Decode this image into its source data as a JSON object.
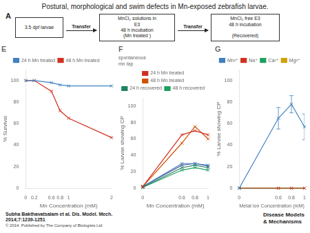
{
  "title": "Postural, morphological and swim defects in Mn-exposed zebrafish larvae.",
  "scheme": {
    "label": "A",
    "boxes": [
      "3.5 dpf larvae",
      "MnCl₂ solutions in\nE3\n48 h incubation\n(Mn treated )",
      "MnCl₂ free E3\n48 h incubation\n\n(Recovered)"
    ],
    "arrows": [
      "Transfer",
      "Transfer"
    ]
  },
  "footer": {
    "citation": "Subha Bakthavatsalam et al. Dis. Model. Mech.\n2014;7:1239-1251",
    "copyright": "© 2014. Published by The Company of Biologists Ltd",
    "logo": [
      "Disease Models",
      "& Mechanisms"
    ]
  },
  "chart_data": [
    {
      "type": "line",
      "title": "E",
      "xlabel": "Mn Concentration (mM)",
      "ylabel": "% Survival",
      "x": [
        0,
        0.2,
        0.6,
        0.8,
        1,
        2
      ],
      "series": [
        {
          "name": "24 h Mn treated",
          "color": "#4080c0",
          "values": [
            100,
            100,
            98,
            96,
            95,
            95
          ]
        },
        {
          "name": "48 h Mn treated",
          "color": "#d03020",
          "values": [
            100,
            100,
            90,
            72,
            65,
            47
          ]
        }
      ],
      "xlim": [
        0,
        2
      ],
      "xticks": [
        0,
        0.2,
        0.6,
        0.8,
        1,
        2
      ],
      "ylim": [
        0,
        110
      ],
      "yticks": [
        0,
        20,
        40,
        60,
        80,
        100
      ],
      "marker": "x",
      "grid": false,
      "legend": "top"
    },
    {
      "type": "line",
      "title": "F",
      "xlabel": "Mn Concentration (mM)",
      "ylabel": "% Larvae showing CP",
      "annotations": [
        "spontaneous",
        "mn tap"
      ],
      "x": [
        0,
        0.6,
        0.8,
        1
      ],
      "series": [
        {
          "name": "24 h Mn treated",
          "color": "#d03020",
          "values": [
            2,
            65,
            70,
            65
          ]
        },
        {
          "name": "48 h Mn treated",
          "color": "#d05000",
          "values": [
            2,
            55,
            75,
            60
          ]
        },
        {
          "name": "24 h recovered",
          "color": "#208060",
          "values": [
            1,
            25,
            28,
            25
          ]
        },
        {
          "name": "48 h recovered",
          "color": "#20a060",
          "values": [
            1,
            22,
            25,
            22
          ]
        },
        {
          "color": "#4080c0",
          "values": [
            2,
            30,
            30,
            28
          ]
        },
        {
          "color": "#6060a0",
          "values": [
            2,
            28,
            30,
            27
          ]
        }
      ],
      "xlim": [
        0,
        1
      ],
      "xticks": [
        0,
        0.6,
        0.8,
        1
      ],
      "ylim": [
        0,
        110
      ],
      "yticks": [
        0,
        20,
        40,
        60,
        80,
        100
      ],
      "marker": "x",
      "grid": false,
      "legend": "top"
    },
    {
      "type": "line",
      "title": "G",
      "xlabel": "Metal ion Concentration (mM)",
      "ylabel": "% Larvae showing CP",
      "x": [
        0,
        0.6,
        0.8,
        1
      ],
      "series": [
        {
          "name": "Mn²⁺",
          "color": "#4080c0",
          "values": [
            0,
            65,
            78,
            57
          ],
          "errors": [
            0,
            10,
            8,
            12
          ]
        },
        {
          "name": "Na⁺",
          "color": "#d03020",
          "values": [
            0,
            0,
            0,
            0
          ]
        },
        {
          "name": "Ca²⁺",
          "color": "#20a060",
          "values": [
            0,
            0,
            0,
            0
          ]
        },
        {
          "name": "Mg²⁺",
          "color": "#d0a000",
          "values": [
            0,
            0,
            0,
            0
          ]
        }
      ],
      "xlim": [
        0,
        1
      ],
      "xticks": [
        0,
        0.6,
        0.8,
        1
      ],
      "ylim": [
        0,
        110
      ],
      "yticks": [
        0,
        20,
        40,
        60,
        80,
        100
      ],
      "marker": "x",
      "grid": false,
      "legend": "top"
    }
  ]
}
